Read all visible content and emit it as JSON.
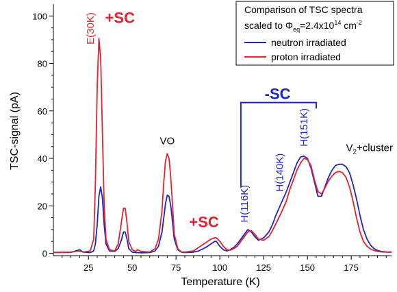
{
  "colors": {
    "neutron": "#1f23c8",
    "proton": "#e8202a",
    "annotation_red": "#e8202a",
    "annotation_blue": "#1f23c8",
    "axis": "#000000"
  },
  "chart_data": {
    "type": "line",
    "title": "",
    "xlabel": "Temperature (K)",
    "ylabel": "TSC-signal (pA)",
    "xlim": [
      5,
      198
    ],
    "ylim": [
      -1,
      105
    ],
    "grid": false,
    "legend_placement": "top-right",
    "x_ticks": [
      25,
      50,
      75,
      100,
      125,
      150,
      175
    ],
    "x_tick_labels": [
      "25",
      "50",
      "75",
      "100",
      "125",
      "150",
      "175"
    ],
    "y_ticks": [
      0,
      20,
      40,
      60,
      80,
      100
    ],
    "y_tick_labels": [
      "0",
      "20",
      "40",
      "60",
      "80",
      "100"
    ],
    "legend": {
      "title_line1": "Comparison of TSC spectra",
      "title_line2_prefix": "scaled to Φ",
      "title_line2_sub": "eq",
      "title_line2_mid": "=2.4x10",
      "title_line2_sup": "14",
      "title_line2_suffix": " cm",
      "title_line2_sup2": "-2"
    },
    "series": [
      {
        "name": "neutron irradiated",
        "color": "#1f23c8",
        "x": [
          5,
          15,
          20,
          22,
          26,
          28,
          29,
          30,
          31,
          32,
          33,
          34,
          35,
          37,
          40,
          42,
          44,
          45,
          46,
          47,
          48,
          50,
          52,
          55,
          60,
          63,
          65,
          67,
          68,
          69,
          70,
          71,
          72,
          73,
          74,
          76,
          78,
          80,
          85,
          88,
          92,
          95,
          97,
          98,
          100,
          102,
          104,
          106,
          108,
          110,
          112,
          114,
          116,
          118,
          120,
          122,
          125,
          128,
          130,
          132,
          135,
          138,
          140,
          142,
          144,
          146,
          148,
          150,
          152,
          154,
          156,
          158,
          160,
          162,
          164,
          166,
          168,
          170,
          172,
          174,
          176,
          178,
          180,
          182,
          184,
          186,
          188,
          190,
          192,
          195,
          198
        ],
        "y": [
          0.3,
          0.4,
          1.5,
          0.5,
          0.3,
          1,
          4,
          12,
          24,
          28,
          23,
          12,
          4,
          1,
          0.8,
          2,
          6,
          9,
          9,
          6,
          2,
          0.5,
          0.3,
          0.2,
          0.3,
          1,
          3,
          9,
          15,
          21,
          24.5,
          24,
          20,
          13,
          6,
          1.5,
          0.5,
          0.3,
          0.5,
          1,
          2.5,
          4,
          5,
          5,
          3,
          1.5,
          1,
          1.5,
          2.5,
          4,
          6,
          8,
          10,
          9,
          7,
          5.5,
          6.5,
          9,
          12,
          16,
          21,
          26,
          30,
          34,
          38,
          40.5,
          41,
          40,
          36,
          30,
          24,
          24,
          28,
          32,
          35,
          37,
          37.5,
          37.5,
          36.5,
          34,
          29,
          23,
          16,
          10,
          6,
          3.5,
          2,
          1.2,
          0.8,
          0.6,
          0.5
        ]
      },
      {
        "name": "proton irradiated",
        "color": "#e8202a",
        "x": [
          5,
          15,
          20,
          22,
          26,
          28,
          29,
          30,
          31,
          32,
          33,
          34,
          35,
          37,
          40,
          42,
          44,
          45,
          46,
          47,
          48,
          50,
          52,
          53,
          55,
          60,
          63,
          65,
          67,
          68,
          69,
          70,
          71,
          72,
          73,
          74,
          76,
          78,
          80,
          85,
          88,
          92,
          95,
          97,
          98,
          100,
          102,
          104,
          106,
          108,
          110,
          112,
          114,
          116,
          118,
          120,
          122,
          125,
          128,
          130,
          132,
          135,
          138,
          140,
          142,
          144,
          146,
          148,
          150,
          152,
          154,
          156,
          158,
          160,
          162,
          164,
          166,
          168,
          170,
          172,
          174,
          176,
          178,
          180,
          182,
          184,
          186,
          188,
          190,
          192,
          195,
          198
        ],
        "y": [
          0.4,
          0.5,
          1,
          0.5,
          1,
          6,
          30,
          70,
          90.5,
          82,
          50,
          20,
          6,
          1.5,
          1,
          4,
          14,
          19,
          19,
          13,
          5,
          1.5,
          0.8,
          1.5,
          0.8,
          0.5,
          2,
          6,
          18,
          30,
          39,
          42,
          40,
          32,
          20,
          8,
          2,
          0.6,
          0.5,
          1,
          2.5,
          4.5,
          6,
          6.5,
          6.5,
          5,
          3,
          1.5,
          1.3,
          2,
          3,
          5,
          7,
          9,
          9.5,
          8,
          6,
          5.5,
          7,
          9.5,
          12.5,
          17,
          22,
          27,
          31,
          35,
          38,
          40,
          39.5,
          37,
          31,
          26,
          25,
          27.5,
          30.5,
          32.5,
          34,
          34.5,
          34,
          32,
          28,
          22,
          15,
          9,
          5,
          3,
          1.8,
          1.2,
          0.8,
          0.6,
          0.5,
          0.4
        ]
      }
    ],
    "annotations": [
      {
        "text": "E(30K)",
        "color": "#e8202a",
        "x": 28,
        "y": 88,
        "rotated": true
      },
      {
        "text": "+SC",
        "color": "#e8202a",
        "x": 43,
        "y": 97,
        "rotated": false,
        "bold": true
      },
      {
        "text": "VO",
        "color": "#000000",
        "x": 70,
        "y": 46,
        "rotated": false
      },
      {
        "text": "+SC",
        "color": "#e8202a",
        "x": 91,
        "y": 11,
        "rotated": false,
        "bold": true
      },
      {
        "text": "H(116K)",
        "color": "#1f23c8",
        "x": 116,
        "y": 13,
        "rotated": true
      },
      {
        "text": "H(140K)",
        "color": "#1f23c8",
        "x": 136,
        "y": 26,
        "rotated": true
      },
      {
        "text": "H(151K)",
        "color": "#1f23c8",
        "x": 150,
        "y": 45,
        "rotated": true
      },
      {
        "text": "-SC",
        "color": "#1f23c8",
        "x": 133,
        "y": 65,
        "rotated": false,
        "bold": true
      },
      {
        "text_main": "V",
        "text_sub": "2",
        "text_rest": "+cluster",
        "color": "#000000",
        "x": 172,
        "y": 43
      }
    ],
    "bracket": {
      "x_start": 112,
      "x_end": 155,
      "y_top": 63.5,
      "y_tick_end": 61,
      "y_left_bottom": 28,
      "color": "#1f23c8"
    }
  }
}
